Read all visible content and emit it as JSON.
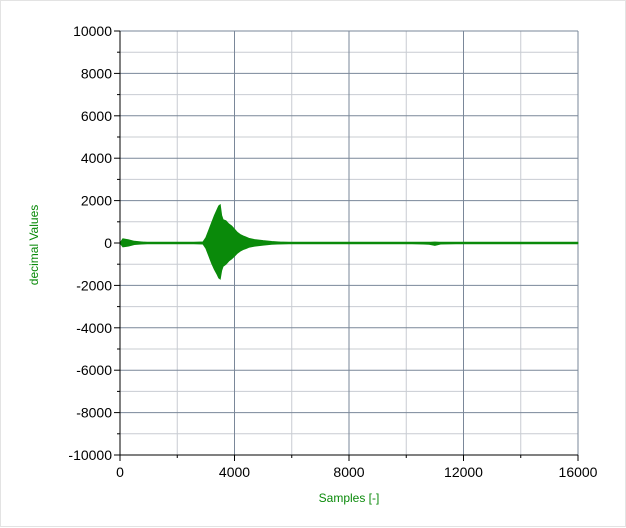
{
  "chart_data": {
    "type": "line",
    "title": "",
    "xlabel": "Samples [-]",
    "ylabel": "decimal Values",
    "xlim": [
      0,
      16000
    ],
    "ylim": [
      -10000,
      10000
    ],
    "x_ticks": [
      0,
      4000,
      8000,
      12000,
      16000
    ],
    "x_tick_labels": [
      "0",
      "4000",
      "8000",
      "12000",
      "16000"
    ],
    "y_ticks": [
      10000,
      8000,
      6000,
      4000,
      2000,
      0,
      -2000,
      -4000,
      -6000,
      -8000,
      -10000
    ],
    "y_tick_labels": [
      "10000",
      "8000",
      "6000",
      "4000",
      "2000",
      "0",
      "-2000",
      "-4000",
      "-6000",
      "-8000",
      "-10000"
    ],
    "x_minor_step": 2000,
    "y_minor_step": 1000,
    "grid": true,
    "legend": "none",
    "series": [
      {
        "color": "#0a8a0a",
        "x": [
          0,
          100,
          300,
          500,
          800,
          1000,
          1500,
          2000,
          2500,
          2900,
          3000,
          3100,
          3200,
          3300,
          3400,
          3450,
          3500,
          3550,
          3600,
          3700,
          3800,
          3900,
          4000,
          4100,
          4200,
          4300,
          4400,
          4500,
          4700,
          5000,
          5300,
          5600,
          6000,
          7000,
          8000,
          9000,
          10000,
          10800,
          11000,
          11200,
          12000,
          13000,
          14000,
          15000,
          16000
        ],
        "y_max": [
          0,
          200,
          150,
          80,
          40,
          20,
          10,
          10,
          20,
          50,
          250,
          600,
          950,
          1300,
          1600,
          1750,
          1800,
          1300,
          1100,
          1050,
          900,
          800,
          650,
          500,
          400,
          330,
          280,
          220,
          160,
          110,
          70,
          40,
          20,
          10,
          10,
          10,
          10,
          20,
          40,
          20,
          10,
          10,
          10,
          10,
          10
        ],
        "y_min": [
          0,
          -180,
          -140,
          -70,
          -40,
          -20,
          -10,
          -10,
          -20,
          -50,
          -250,
          -600,
          -950,
          -1250,
          -1500,
          -1650,
          -1700,
          -1300,
          -1100,
          -1000,
          -850,
          -750,
          -620,
          -480,
          -380,
          -310,
          -260,
          -200,
          -150,
          -100,
          -60,
          -40,
          -20,
          -10,
          -10,
          -10,
          -10,
          -60,
          -110,
          -50,
          -10,
          -10,
          -10,
          -10,
          -10
        ]
      }
    ]
  },
  "colors": {
    "axis_title": "#0a8a0a",
    "major_grid": "#7a8799",
    "minor_grid": "#c8ccd2",
    "axis_line": "#000000"
  }
}
